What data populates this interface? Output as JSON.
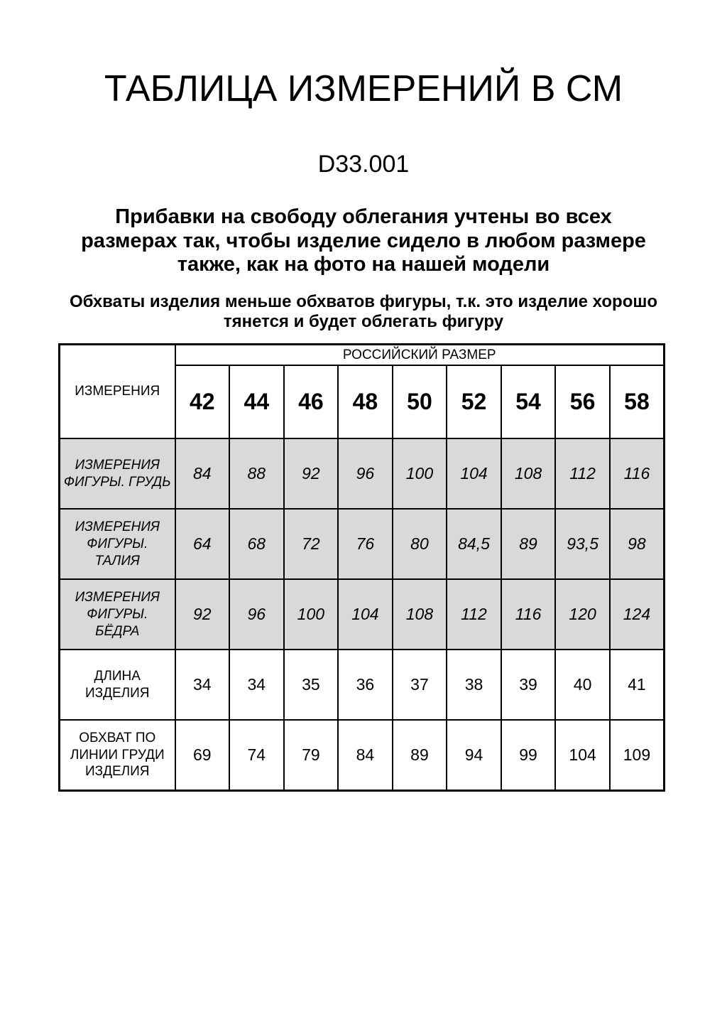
{
  "page": {
    "title": "ТАБЛИЦА ИЗМЕРЕНИЙ В СМ",
    "product_code": "D33.001",
    "note_primary": "Прибавки на свободу облегания учтены во всех размерах так, чтобы изделие сидело в любом размере также, как на фото на нашей модели",
    "note_secondary": "Обхваты изделия меньше обхватов фигуры, т.к. это изделие хорошо тянется и будет облегать фигуру"
  },
  "table": {
    "corner_label": "ИЗМЕРЕНИЯ",
    "group_header": "РОССИЙСКИЙ РАЗМЕР",
    "sizes": [
      "42",
      "44",
      "46",
      "48",
      "50",
      "52",
      "54",
      "56",
      "58"
    ],
    "rows": [
      {
        "label": "ИЗМЕРЕНИЯ ФИГУРЫ. ГРУДЬ",
        "shaded": true,
        "values": [
          "84",
          "88",
          "92",
          "96",
          "100",
          "104",
          "108",
          "112",
          "116"
        ]
      },
      {
        "label": "ИЗМЕРЕНИЯ ФИГУРЫ. ТАЛИЯ",
        "shaded": true,
        "values": [
          "64",
          "68",
          "72",
          "76",
          "80",
          "84,5",
          "89",
          "93,5",
          "98"
        ]
      },
      {
        "label": "ИЗМЕРЕНИЯ ФИГУРЫ. БЁДРА",
        "shaded": true,
        "values": [
          "92",
          "96",
          "100",
          "104",
          "108",
          "112",
          "116",
          "120",
          "124"
        ]
      },
      {
        "label": "ДЛИНА ИЗДЕЛИЯ",
        "shaded": false,
        "values": [
          "34",
          "34",
          "35",
          "36",
          "37",
          "38",
          "39",
          "40",
          "41"
        ]
      },
      {
        "label": "ОБХВАТ ПО ЛИНИИ ГРУДИ ИЗДЕЛИЯ",
        "shaded": false,
        "values": [
          "69",
          "74",
          "79",
          "84",
          "89",
          "94",
          "99",
          "104",
          "109"
        ]
      }
    ],
    "shaded_color": "#d9d9d9",
    "border_color": "#000000"
  }
}
